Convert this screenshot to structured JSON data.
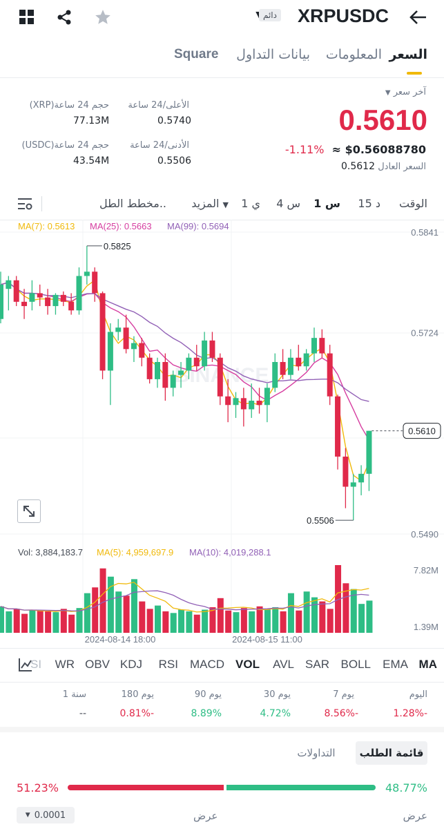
{
  "header": {
    "pair": "XRPUSDC",
    "badge": "دائم",
    "icons": [
      "grid-icon",
      "share-icon",
      "star-icon",
      "dropdown-icon",
      "back-arrow-icon"
    ]
  },
  "tabs": [
    {
      "label": "السعر",
      "active": true
    },
    {
      "label": "المعلومات",
      "active": false
    },
    {
      "label": "بيانات التداول",
      "active": false
    },
    {
      "label": "Square",
      "active": false
    }
  ],
  "price": {
    "last_price_label": "آخر سعر",
    "last_price": "0.5610",
    "change_pct": "-1.11%",
    "usd_value": "≈ $0.56088780",
    "fair_price_label": "السعر العادل",
    "fair_price": "0.5612"
  },
  "stats": {
    "high_label": "الأعلى/24 ساعة",
    "high": "0.5740",
    "low_label": "الأدنى/24 ساعة",
    "low": "0.5506",
    "vol_xrp_label": "حجم 24 ساعة(XRP)",
    "vol_xrp": "77.13M",
    "vol_usdc_label": "حجم 24 ساعة(USDC)",
    "vol_usdc": "43.54M"
  },
  "timeframes": {
    "time_label": "الوقت",
    "items": [
      "15 د",
      "1 س",
      "4 س",
      "1 ي"
    ],
    "active": "1 س",
    "more_label": "المزيد",
    "chart_type_label": "مخطط الطل.."
  },
  "colors": {
    "up": "#2ebd85",
    "down": "#e0294a",
    "ma7": "#f0b90b",
    "ma25": "#d63da0",
    "ma99": "#9160b6",
    "accent": "#f0b90b"
  },
  "legend": {
    "ma7": "MA(7): 0.5613",
    "ma25": "MA(25): 0.5663",
    "ma99": "MA(99): 0.5694",
    "vol": "Vol: 3,884,183.7",
    "vol_ma5": "MA(5): 4,959,697.9",
    "vol_ma10": "MA(10): 4,019,288.1"
  },
  "chart_data": {
    "type": "candlestick",
    "y_ticks": [
      "0.5841",
      "0.5724",
      "0.5610",
      "0.5490"
    ],
    "ylim": [
      0.549,
      0.5841
    ],
    "high_label": "0.5825",
    "low_label": "0.5506",
    "current_price_label": "0.5610",
    "vol_ticks": [
      "7.82M",
      "1.39M"
    ],
    "x_ticks": [
      "2024-08-14 18:00",
      "2024-08-15 11:00"
    ],
    "candles": [
      {
        "o": 0.574,
        "h": 0.5795,
        "l": 0.5735,
        "c": 0.578
      },
      {
        "o": 0.5775,
        "h": 0.579,
        "l": 0.575,
        "c": 0.5785
      },
      {
        "o": 0.5785,
        "h": 0.579,
        "l": 0.5755,
        "c": 0.576
      },
      {
        "o": 0.576,
        "h": 0.5775,
        "l": 0.574,
        "c": 0.5755
      },
      {
        "o": 0.576,
        "h": 0.5785,
        "l": 0.575,
        "c": 0.577
      },
      {
        "o": 0.577,
        "h": 0.578,
        "l": 0.5755,
        "c": 0.5765
      },
      {
        "o": 0.5765,
        "h": 0.5775,
        "l": 0.5745,
        "c": 0.5755
      },
      {
        "o": 0.5755,
        "h": 0.577,
        "l": 0.5745,
        "c": 0.5768
      },
      {
        "o": 0.5768,
        "h": 0.5772,
        "l": 0.5755,
        "c": 0.576
      },
      {
        "o": 0.576,
        "h": 0.577,
        "l": 0.5745,
        "c": 0.575
      },
      {
        "o": 0.575,
        "h": 0.58,
        "l": 0.5745,
        "c": 0.579
      },
      {
        "o": 0.579,
        "h": 0.5825,
        "l": 0.578,
        "c": 0.5795
      },
      {
        "o": 0.5795,
        "h": 0.58,
        "l": 0.576,
        "c": 0.577
      },
      {
        "o": 0.577,
        "h": 0.5772,
        "l": 0.567,
        "c": 0.568
      },
      {
        "o": 0.568,
        "h": 0.5735,
        "l": 0.564,
        "c": 0.5725
      },
      {
        "o": 0.5725,
        "h": 0.574,
        "l": 0.5715,
        "c": 0.573
      },
      {
        "o": 0.573,
        "h": 0.5745,
        "l": 0.57,
        "c": 0.5705
      },
      {
        "o": 0.5705,
        "h": 0.572,
        "l": 0.569,
        "c": 0.5712
      },
      {
        "o": 0.5712,
        "h": 0.5718,
        "l": 0.5685,
        "c": 0.5695
      },
      {
        "o": 0.5695,
        "h": 0.57,
        "l": 0.5665,
        "c": 0.567
      },
      {
        "o": 0.567,
        "h": 0.5695,
        "l": 0.566,
        "c": 0.569
      },
      {
        "o": 0.569,
        "h": 0.57,
        "l": 0.5645,
        "c": 0.566
      },
      {
        "o": 0.566,
        "h": 0.568,
        "l": 0.565,
        "c": 0.5675
      },
      {
        "o": 0.5675,
        "h": 0.569,
        "l": 0.566,
        "c": 0.568
      },
      {
        "o": 0.568,
        "h": 0.57,
        "l": 0.567,
        "c": 0.5695
      },
      {
        "o": 0.5695,
        "h": 0.571,
        "l": 0.568,
        "c": 0.5685
      },
      {
        "o": 0.5685,
        "h": 0.5725,
        "l": 0.568,
        "c": 0.5715
      },
      {
        "o": 0.5715,
        "h": 0.5725,
        "l": 0.569,
        "c": 0.5695
      },
      {
        "o": 0.5695,
        "h": 0.57,
        "l": 0.564,
        "c": 0.565
      },
      {
        "o": 0.565,
        "h": 0.567,
        "l": 0.562,
        "c": 0.564
      },
      {
        "o": 0.564,
        "h": 0.5655,
        "l": 0.5625,
        "c": 0.5648
      },
      {
        "o": 0.5648,
        "h": 0.566,
        "l": 0.5615,
        "c": 0.5635
      },
      {
        "o": 0.5635,
        "h": 0.5665,
        "l": 0.5625,
        "c": 0.5645
      },
      {
        "o": 0.5645,
        "h": 0.566,
        "l": 0.563,
        "c": 0.564
      },
      {
        "o": 0.564,
        "h": 0.5665,
        "l": 0.562,
        "c": 0.566
      },
      {
        "o": 0.566,
        "h": 0.57,
        "l": 0.5655,
        "c": 0.569
      },
      {
        "o": 0.569,
        "h": 0.5705,
        "l": 0.567,
        "c": 0.5675
      },
      {
        "o": 0.5675,
        "h": 0.5705,
        "l": 0.567,
        "c": 0.5695
      },
      {
        "o": 0.5695,
        "h": 0.571,
        "l": 0.568,
        "c": 0.5685
      },
      {
        "o": 0.5685,
        "h": 0.5705,
        "l": 0.568,
        "c": 0.57
      },
      {
        "o": 0.57,
        "h": 0.573,
        "l": 0.569,
        "c": 0.5718
      },
      {
        "o": 0.5718,
        "h": 0.5728,
        "l": 0.5695,
        "c": 0.57
      },
      {
        "o": 0.57,
        "h": 0.571,
        "l": 0.564,
        "c": 0.565
      },
      {
        "o": 0.565,
        "h": 0.5652,
        "l": 0.5565,
        "c": 0.558
      },
      {
        "o": 0.558,
        "h": 0.559,
        "l": 0.552,
        "c": 0.5545
      },
      {
        "o": 0.5545,
        "h": 0.556,
        "l": 0.5506,
        "c": 0.555
      },
      {
        "o": 0.555,
        "h": 0.557,
        "l": 0.5535,
        "c": 0.556
      },
      {
        "o": 0.556,
        "h": 0.561,
        "l": 0.554,
        "c": 0.561
      }
    ],
    "volumes": [
      3.2,
      2.6,
      2.9,
      2.3,
      2.8,
      2.7,
      2.6,
      2.5,
      2.9,
      2.2,
      3.0,
      4.8,
      5.5,
      7.8,
      6.8,
      5.0,
      4.5,
      6.5,
      3.8,
      2.9,
      3.3,
      2.6,
      2.4,
      2.8,
      2.6,
      2.2,
      2.8,
      3.1,
      4.2,
      2.7,
      2.5,
      3.0,
      2.6,
      3.2,
      2.8,
      3.1,
      2.6,
      4.8,
      2.7,
      5.0,
      4.3,
      3.8,
      2.9,
      8.2,
      6.0,
      5.3,
      3.5,
      3.9
    ]
  },
  "indicators": {
    "items": [
      "MA",
      "EMA",
      "BOLL",
      "SAR",
      "AVL",
      "VOL",
      "MACD",
      "RSI",
      "KDJ",
      "OBV",
      "WR",
      "SI"
    ],
    "active": "VOL"
  },
  "performance": [
    {
      "label": "اليوم",
      "value": "1.28%-",
      "dir": "down"
    },
    {
      "label": "7 يوم",
      "value": "8.56%-",
      "dir": "down"
    },
    {
      "label": "30 يوم",
      "value": "4.72%",
      "dir": "up"
    },
    {
      "label": "90 يوم",
      "value": "8.89%",
      "dir": "up"
    },
    {
      "label": "180 يوم",
      "value": "0.81%-",
      "dir": "down"
    },
    {
      "label": "1 سنة",
      "value": "--",
      "dir": "none"
    }
  ],
  "orderbook": {
    "tab_orderbook": "قائمة الطلب",
    "tab_trades": "التداولات",
    "bid_pct": "48.77%",
    "ask_pct": "51.23%",
    "bid_fraction": 0.4877,
    "bid_label": "عرض",
    "ask_label": "عرض",
    "precision": "0.0001"
  }
}
